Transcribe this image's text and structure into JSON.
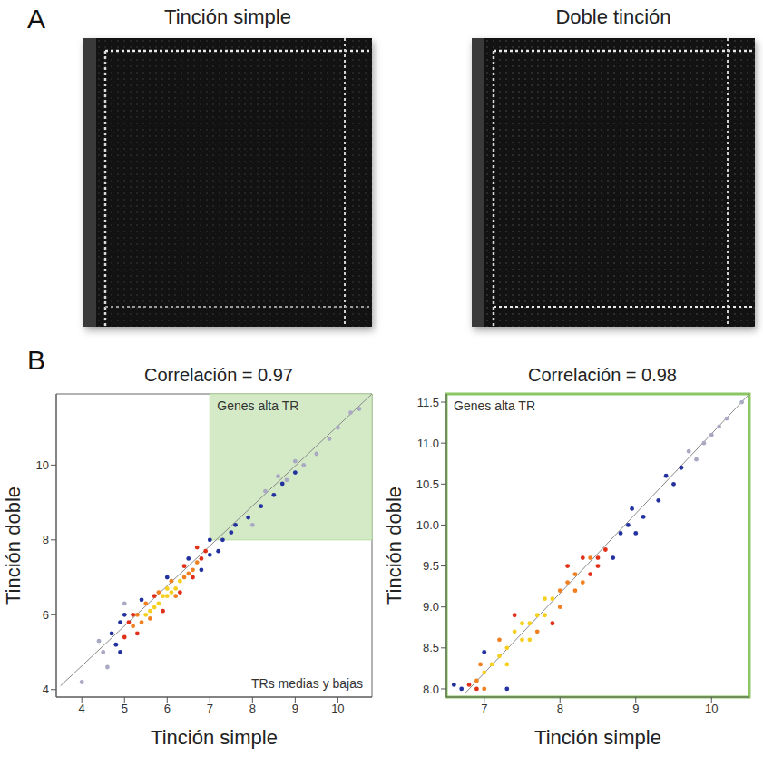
{
  "panel_a": {
    "letter": "A",
    "images": [
      {
        "title": "Tinción simple"
      },
      {
        "title": "Doble tinción"
      }
    ]
  },
  "panel_b": {
    "letter": "B"
  },
  "chart_data": [
    {
      "type": "scatter",
      "title": "Correlación = 0.97",
      "x_label": "Tinción simple",
      "y_label": "Tinción doble",
      "xlim": [
        3.4,
        10.8
      ],
      "xticks": [
        4,
        5,
        6,
        7,
        8,
        9,
        10
      ],
      "ylim": [
        3.8,
        11.9
      ],
      "yticks": [
        4,
        6,
        8,
        10
      ],
      "annotations": [
        "Genes alta TR",
        "TRs medias y bajas"
      ],
      "highlight": {
        "x": [
          7,
          10.8
        ],
        "y": [
          8,
          11.9
        ],
        "fill": "#d4eac6",
        "stroke": "#b5dc9c"
      },
      "fit_line": {
        "x": [
          3.5,
          10.8
        ],
        "y": [
          4.1,
          11.9
        ],
        "color": "#888888"
      },
      "series": [
        {
          "color": "#a9a9c4",
          "points": [
            [
              4.0,
              4.2
            ],
            [
              4.4,
              5.3
            ],
            [
              4.6,
              4.6
            ],
            [
              4.5,
              5.0
            ],
            [
              5.0,
              6.3
            ],
            [
              8.3,
              9.3
            ],
            [
              8.8,
              9.6
            ],
            [
              9.2,
              10.0
            ],
            [
              9.5,
              10.3
            ],
            [
              9.8,
              10.7
            ],
            [
              10.0,
              11.0
            ],
            [
              10.3,
              11.4
            ],
            [
              10.5,
              11.5
            ],
            [
              8.0,
              8.4
            ],
            [
              8.6,
              9.7
            ],
            [
              9.0,
              10.1
            ]
          ]
        },
        {
          "color": "#22319e",
          "points": [
            [
              4.8,
              5.2
            ],
            [
              4.7,
              5.5
            ],
            [
              4.9,
              5.0
            ],
            [
              5.0,
              6.0
            ],
            [
              5.4,
              6.4
            ],
            [
              6.0,
              7.0
            ],
            [
              6.8,
              7.2
            ],
            [
              7.0,
              8.0
            ],
            [
              7.0,
              7.6
            ],
            [
              7.3,
              8.0
            ],
            [
              7.5,
              8.2
            ],
            [
              7.6,
              8.4
            ],
            [
              7.9,
              8.6
            ],
            [
              8.2,
              8.9
            ],
            [
              8.5,
              9.2
            ],
            [
              8.7,
              9.5
            ],
            [
              9.0,
              9.8
            ],
            [
              4.9,
              5.8
            ],
            [
              6.5,
              7.5
            ],
            [
              7.2,
              7.7
            ]
          ]
        },
        {
          "color": "#e0301a",
          "points": [
            [
              5.0,
              5.4
            ],
            [
              5.1,
              5.8
            ],
            [
              6.8,
              7.5
            ],
            [
              6.9,
              7.7
            ],
            [
              6.7,
              7.8
            ],
            [
              6.4,
              7.3
            ],
            [
              5.3,
              5.5
            ],
            [
              5.7,
              6.5
            ],
            [
              6.6,
              7.0
            ],
            [
              5.9,
              6.1
            ],
            [
              6.3,
              6.6
            ],
            [
              5.2,
              6.0
            ]
          ]
        },
        {
          "color": "#f08020",
          "points": [
            [
              5.2,
              5.7
            ],
            [
              5.4,
              5.8
            ],
            [
              5.3,
              6.0
            ],
            [
              6.4,
              7.0
            ],
            [
              6.6,
              7.2
            ],
            [
              6.5,
              7.1
            ],
            [
              5.8,
              6.6
            ],
            [
              6.2,
              6.5
            ],
            [
              5.6,
              5.9
            ],
            [
              6.7,
              7.4
            ],
            [
              5.5,
              6.3
            ],
            [
              6.1,
              6.9
            ]
          ]
        },
        {
          "color": "#f5d020",
          "points": [
            [
              5.6,
              6.1
            ],
            [
              5.8,
              6.3
            ],
            [
              6.0,
              6.5
            ],
            [
              6.2,
              6.7
            ],
            [
              5.9,
              6.5
            ],
            [
              6.1,
              6.6
            ],
            [
              5.7,
              6.2
            ],
            [
              6.3,
              6.9
            ],
            [
              5.5,
              6.0
            ],
            [
              6.0,
              6.7
            ]
          ]
        }
      ]
    },
    {
      "type": "scatter",
      "title": "Correlación = 0.98",
      "x_label": "Tinción simple",
      "y_label": "Tinción doble",
      "xlim": [
        6.5,
        10.5
      ],
      "xticks": [
        7,
        8,
        9,
        10
      ],
      "ylim": [
        7.9,
        11.6
      ],
      "yticks": [
        {
          "value": 8,
          "label": "8.0"
        },
        8.5,
        {
          "value": 9,
          "label": "9.0"
        },
        9.5,
        {
          "value": 10,
          "label": "10.0"
        },
        10.5,
        {
          "value": 11,
          "label": "11.0"
        },
        11.5
      ],
      "annotations": [
        "Genes alta TR"
      ],
      "highlight": {
        "x": [
          6.5,
          10.5
        ],
        "y": [
          7.9,
          11.6
        ],
        "stroke": "#8cc664"
      },
      "fit_line": {
        "x": [
          6.75,
          10.5
        ],
        "y": [
          7.95,
          11.6
        ],
        "color": "#888888"
      },
      "series": [
        {
          "color": "#a9a9c4",
          "points": [
            [
              9.7,
              10.9
            ],
            [
              9.9,
              11.0
            ],
            [
              10.1,
              11.2
            ],
            [
              10.2,
              11.3
            ],
            [
              10.4,
              11.5
            ],
            [
              9.8,
              10.8
            ],
            [
              10.0,
              11.1
            ]
          ]
        },
        {
          "color": "#22319e",
          "points": [
            [
              6.7,
              8.0
            ],
            [
              6.6,
              8.05
            ],
            [
              7.0,
              8.45
            ],
            [
              7.3,
              8.0
            ],
            [
              8.9,
              10.0
            ],
            [
              9.0,
              9.9
            ],
            [
              8.95,
              10.2
            ],
            [
              9.1,
              10.1
            ],
            [
              8.8,
              9.9
            ],
            [
              9.4,
              10.6
            ],
            [
              9.5,
              10.5
            ],
            [
              9.6,
              10.7
            ],
            [
              8.7,
              9.6
            ],
            [
              9.3,
              10.3
            ]
          ]
        },
        {
          "color": "#e0301a",
          "points": [
            [
              6.8,
              8.05
            ],
            [
              6.9,
              8.0
            ],
            [
              8.5,
              9.6
            ],
            [
              8.6,
              9.7
            ],
            [
              8.4,
              9.4
            ],
            [
              8.3,
              9.6
            ],
            [
              7.4,
              8.9
            ],
            [
              8.1,
              9.5
            ],
            [
              8.5,
              9.5
            ],
            [
              7.9,
              8.8
            ]
          ]
        },
        {
          "color": "#f08020",
          "points": [
            [
              6.9,
              8.1
            ],
            [
              7.0,
              8.0
            ],
            [
              8.0,
              9.2
            ],
            [
              8.1,
              9.3
            ],
            [
              8.2,
              9.4
            ],
            [
              8.0,
              9.0
            ],
            [
              8.3,
              9.3
            ],
            [
              7.2,
              8.6
            ],
            [
              8.4,
              9.6
            ],
            [
              7.7,
              8.7
            ],
            [
              8.2,
              9.2
            ],
            [
              6.95,
              8.3
            ]
          ]
        },
        {
          "color": "#f5d020",
          "points": [
            [
              7.0,
              8.2
            ],
            [
              7.2,
              8.4
            ],
            [
              7.3,
              8.5
            ],
            [
              7.5,
              8.6
            ],
            [
              7.4,
              8.7
            ],
            [
              7.6,
              8.8
            ],
            [
              7.7,
              8.9
            ],
            [
              7.8,
              8.9
            ],
            [
              7.9,
              9.1
            ],
            [
              7.1,
              8.3
            ],
            [
              7.6,
              8.6
            ],
            [
              7.3,
              8.3
            ],
            [
              7.8,
              9.1
            ],
            [
              7.5,
              8.8
            ]
          ]
        }
      ]
    }
  ]
}
